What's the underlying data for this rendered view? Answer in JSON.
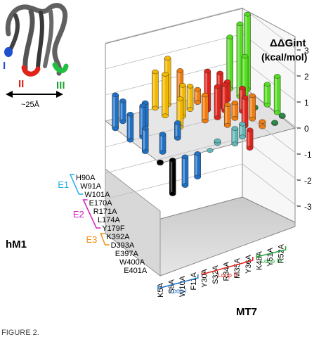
{
  "chart_data": {
    "type": "3d-bar",
    "z_label": "ΔΔGint",
    "z_unit": "(kcal/mol)",
    "z_ticks": [
      "-3",
      "-2",
      "-1",
      "0",
      "1",
      "2",
      "3"
    ],
    "z_range": [
      -3,
      3
    ],
    "x_axis_label": "MT7",
    "x_categories": [
      "K5A",
      "S8A",
      "W10A",
      "F11A",
      "Y30A",
      "S32A",
      "R34A",
      "M35A",
      "Y36A",
      "K48A",
      "Y51A",
      "R52A"
    ],
    "x_groups": [
      {
        "name": "Loop I",
        "color": "#1f6fc4",
        "start": 0,
        "end": 3
      },
      {
        "name": "Loop II",
        "color": "#e0241c",
        "start": 4,
        "end": 8
      },
      {
        "name": "Loop III",
        "color": "#22a33a",
        "start": 9,
        "end": 11
      }
    ],
    "y_axis_label": "hM1",
    "y_categories": [
      "H90A",
      "W91A",
      "W101A",
      "E170A",
      "R171A",
      "L174A",
      "Y179F",
      "K392A",
      "D393A",
      "E397A",
      "W400A",
      "E401A"
    ],
    "y_groups": [
      {
        "name": "E1",
        "color": "#20b0e0",
        "start": 0,
        "end": 2
      },
      {
        "name": "E2",
        "color": "#d020c0",
        "start": 3,
        "end": 6
      },
      {
        "name": "E3",
        "color": "#f09010",
        "start": 7,
        "end": 8
      }
    ],
    "bars": [
      {
        "x": 0,
        "y": 2,
        "value": 1.3,
        "color": "#1f6fc4"
      },
      {
        "x": 0,
        "y": 5,
        "value": 1.0,
        "color": "#1f6fc4"
      },
      {
        "x": 0,
        "y": 8,
        "value": 0.9,
        "color": "#1f6fc4"
      },
      {
        "x": 1,
        "y": 1,
        "value": 0.8,
        "color": "#1f6fc4"
      },
      {
        "x": 1,
        "y": 5,
        "value": 1.2,
        "color": "#1f6fc4"
      },
      {
        "x": 1,
        "y": 9,
        "value": 0.7,
        "color": "#1f6fc4"
      },
      {
        "x": 2,
        "y": 3,
        "value": 0.9,
        "color": "#1f6fc4"
      },
      {
        "x": 3,
        "y": 7,
        "value": 0.6,
        "color": "#1f6fc4"
      },
      {
        "x": 2,
        "y": 11,
        "value": -1.1,
        "color": "#1f6fc4"
      },
      {
        "x": 3,
        "y": 11,
        "value": -0.9,
        "color": "#1f6fc4"
      },
      {
        "x": 0,
        "y": 11,
        "value": 0.05,
        "color": "#000000"
      },
      {
        "x": 1,
        "y": 11,
        "value": -1.3,
        "color": "#000000"
      },
      {
        "x": 4,
        "y": 0,
        "value": 1.4,
        "color": "#f2b800"
      },
      {
        "x": 4,
        "y": 2,
        "value": 1.6,
        "color": "#f2b800"
      },
      {
        "x": 4,
        "y": 5,
        "value": 1.1,
        "color": "#f2b800"
      },
      {
        "x": 5,
        "y": 0,
        "value": 1.8,
        "color": "#f2b800"
      },
      {
        "x": 5,
        "y": 3,
        "value": 1.2,
        "color": "#f2b800"
      },
      {
        "x": 6,
        "y": 2,
        "value": 0.9,
        "color": "#f2b800"
      },
      {
        "x": 5,
        "y": 10,
        "value": 0.1,
        "color": "#60b8b8"
      },
      {
        "x": 6,
        "y": 11,
        "value": 0.6,
        "color": "#60b8b8"
      },
      {
        "x": 7,
        "y": 10,
        "value": 0.5,
        "color": "#60b8b8"
      },
      {
        "x": 4,
        "y": 11,
        "value": 0.0,
        "color": "#60b8b8"
      },
      {
        "x": 6,
        "y": 0,
        "value": 1.2,
        "color": "#f07c10"
      },
      {
        "x": 6,
        "y": 5,
        "value": 1.0,
        "color": "#f07c10"
      },
      {
        "x": 7,
        "y": 1,
        "value": 0.5,
        "color": "#f07c10"
      },
      {
        "x": 7,
        "y": 7,
        "value": 0.8,
        "color": "#f07c10"
      },
      {
        "x": 8,
        "y": 6,
        "value": 0.6,
        "color": "#f07c10"
      },
      {
        "x": 9,
        "y": 7,
        "value": 0.9,
        "color": "#f07c10"
      },
      {
        "x": 9,
        "y": 9,
        "value": 0.2,
        "color": "#f07c10"
      },
      {
        "x": 7,
        "y": 3,
        "value": 1.5,
        "color": "#e0241c"
      },
      {
        "x": 7,
        "y": 5,
        "value": 1.2,
        "color": "#e0241c"
      },
      {
        "x": 8,
        "y": 3,
        "value": 1.3,
        "color": "#e0241c"
      },
      {
        "x": 8,
        "y": 4,
        "value": 1.0,
        "color": "#e0241c"
      },
      {
        "x": 8,
        "y": 8,
        "value": 1.1,
        "color": "#e0241c"
      },
      {
        "x": 9,
        "y": 2,
        "value": 0.7,
        "color": "#e0241c"
      },
      {
        "x": 9,
        "y": 5,
        "value": 0.9,
        "color": "#e0241c"
      },
      {
        "x": 8,
        "y": 9,
        "value": -0.7,
        "color": "#e0241c"
      },
      {
        "x": 10,
        "y": 0,
        "value": 2.0,
        "color": "#55dd22"
      },
      {
        "x": 10,
        "y": 2,
        "value": 2.8,
        "color": "#55dd22"
      },
      {
        "x": 10,
        "y": 3,
        "value": 1.7,
        "color": "#55dd22"
      },
      {
        "x": 11,
        "y": 1,
        "value": 2.9,
        "color": "#55dd22"
      },
      {
        "x": 11,
        "y": 5,
        "value": 0.8,
        "color": "#55dd22"
      },
      {
        "x": 11,
        "y": 7,
        "value": 1.4,
        "color": "#55dd22"
      },
      {
        "x": 10,
        "y": 5,
        "value": 0.05,
        "color": "#2a8a4a"
      },
      {
        "x": 11,
        "y": 8,
        "value": 0.05,
        "color": "#2a8a4a"
      },
      {
        "x": 10,
        "y": 9,
        "value": 0.05,
        "color": "#2a8a4a"
      }
    ]
  },
  "inset": {
    "loop_labels": [
      "I",
      "II",
      "III"
    ],
    "width_label": "~25Å"
  },
  "caption": "FIGURE 2."
}
